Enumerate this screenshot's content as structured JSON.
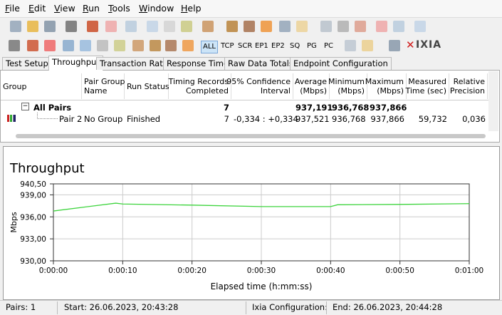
{
  "menu": [
    "File",
    "Edit",
    "View",
    "Run",
    "Tools",
    "Window",
    "Help"
  ],
  "toolbar": {
    "filters": [
      "ALL",
      "TCP",
      "SCR",
      "EP1",
      "EP2",
      "SQ",
      "PG",
      "PC"
    ],
    "brand": "IXIA"
  },
  "tabs": [
    "Test Setup",
    "Throughput",
    "Transaction Rate",
    "Response Time",
    "Raw Data Totals",
    "Endpoint Configuration"
  ],
  "table": {
    "header": [
      [
        "Group"
      ],
      [
        "Pair Group",
        "Name"
      ],
      [
        "Run Status"
      ],
      [
        "Timing Records",
        "Completed"
      ],
      [
        "95% Confidence",
        "Interval"
      ],
      [
        "Average",
        "(Mbps)"
      ],
      [
        "Minimum",
        "(Mbps)"
      ],
      [
        "Maximum",
        "(Mbps)"
      ],
      [
        "Measured",
        "Time (sec)"
      ],
      [
        "Relative",
        "Precision"
      ]
    ],
    "rows": [
      [
        "All Pairs",
        null,
        null,
        "7",
        null,
        "937,191",
        "936,768",
        "937,866",
        null,
        null
      ],
      [
        "Pair 2",
        "No Group",
        "Finished",
        "7",
        "-0,334 : +0,334",
        "937,521",
        "936,768",
        "937,866",
        "59,732",
        "0,036"
      ]
    ]
  },
  "chart_data": {
    "type": "line",
    "title": "Throughput",
    "y_label": "Mbps",
    "x_label": "Elapsed time (h:mm:ss)",
    "x": [
      0,
      9,
      10,
      20,
      30,
      40,
      41,
      50,
      60
    ],
    "series": [
      {
        "name": "Pair 2",
        "color": "#3dd43d",
        "values": [
          936.8,
          937.87,
          937.75,
          937.6,
          937.4,
          937.4,
          937.65,
          937.7,
          937.8
        ]
      }
    ],
    "xlim": [
      0,
      60
    ],
    "xticks": [
      {
        "value": 0,
        "label": "0:00:00"
      },
      {
        "value": 10,
        "label": "0:00:10"
      },
      {
        "value": 20,
        "label": "0:00:20"
      },
      {
        "value": 30,
        "label": "0:00:30"
      },
      {
        "value": 40,
        "label": "0:00:40"
      },
      {
        "value": 50,
        "label": "0:00:50"
      },
      {
        "value": 60,
        "label": "0:01:00"
      }
    ],
    "ylim": [
      930,
      940.5
    ],
    "yticks": [
      {
        "value": 930,
        "label": "930,00"
      },
      {
        "value": 933,
        "label": "933,00"
      },
      {
        "value": 936,
        "label": "936,00"
      },
      {
        "value": 939,
        "label": "939,00"
      },
      {
        "value": 940.5,
        "label": "940,50"
      }
    ],
    "grid": true
  },
  "status": [
    "Pairs: 1",
    "Start: 26.06.2023, 20:43:28",
    "Ixia Configuration:",
    "End: 26.06.2023, 20:44:28"
  ]
}
